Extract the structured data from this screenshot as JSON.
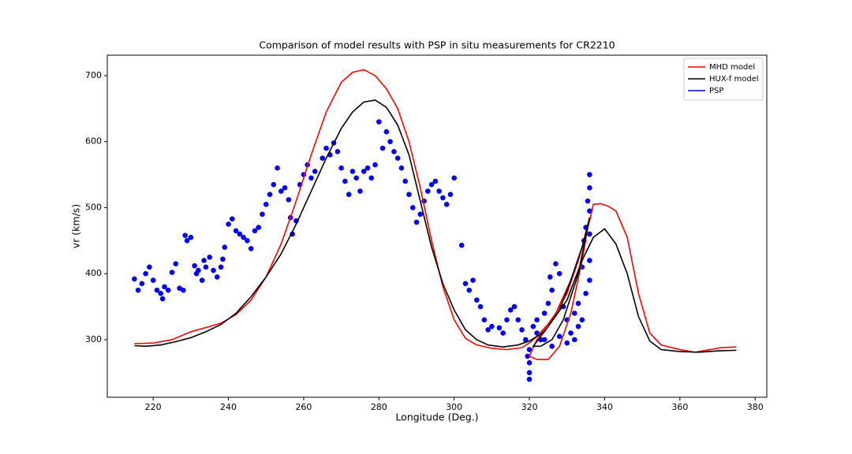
{
  "chart_data": {
    "type": "line",
    "title": "Comparison of model results with PSP in situ measurements for CR2210",
    "x_label": "Longitude (Deg.)",
    "y_label": "vr (km/s)",
    "xlim": [
      207.8,
      383.1
    ],
    "ylim": [
      212.8,
      731
    ],
    "xticks": [
      220,
      240,
      260,
      280,
      300,
      320,
      340,
      360,
      380
    ],
    "yticks": [
      300,
      400,
      500,
      600,
      700
    ],
    "legend": "upper right",
    "series": [
      {
        "name": "MHD model",
        "color": "#ff0000",
        "kind": "line",
        "x": [
          215,
          220,
          225,
          230,
          235,
          238,
          242,
          246,
          250,
          254,
          258,
          262,
          266,
          270,
          273,
          276,
          279,
          282,
          285,
          288,
          291,
          294,
          297,
          300,
          303,
          306,
          310,
          314,
          318,
          320,
          322,
          326,
          330,
          333,
          335,
          336,
          334,
          331,
          328,
          325,
          322,
          320,
          322,
          327,
          331,
          334,
          336,
          337,
          339,
          341,
          343,
          346,
          349,
          352,
          355,
          360,
          364,
          368,
          371,
          375
        ],
        "values": [
          294,
          295,
          300,
          312,
          320,
          325,
          338,
          360,
          395,
          445,
          510,
          580,
          645,
          690,
          705,
          709,
          700,
          680,
          650,
          600,
          530,
          450,
          380,
          330,
          302,
          292,
          287,
          285,
          288,
          295,
          305,
          330,
          370,
          420,
          460,
          485,
          420,
          340,
          290,
          270,
          270,
          275,
          300,
          340,
          390,
          440,
          480,
          505,
          506,
          502,
          495,
          455,
          370,
          310,
          292,
          285,
          281,
          285,
          288,
          289
        ]
      },
      {
        "name": "HUX-f model",
        "color": "#000000",
        "kind": "line",
        "x": [
          215,
          218,
          222,
          226,
          230,
          234,
          238,
          242,
          246,
          250,
          254,
          258,
          262,
          266,
          270,
          273,
          276,
          279,
          282,
          285,
          288,
          291,
          294,
          297,
          300,
          303,
          306,
          309,
          313,
          317,
          320,
          324,
          328,
          331,
          334,
          336,
          333,
          329,
          326,
          323,
          321,
          325,
          330,
          334,
          337,
          340,
          343,
          346,
          349,
          352,
          355,
          360,
          365,
          370,
          375
        ],
        "values": [
          291,
          290,
          292,
          297,
          303,
          312,
          323,
          340,
          365,
          395,
          430,
          475,
          525,
          575,
          620,
          645,
          660,
          663,
          652,
          625,
          580,
          510,
          440,
          385,
          345,
          315,
          300,
          292,
          289,
          292,
          298,
          312,
          345,
          390,
          440,
          485,
          400,
          330,
          300,
          290,
          290,
          320,
          360,
          420,
          455,
          468,
          445,
          400,
          335,
          298,
          285,
          282,
          281,
          283,
          284
        ]
      },
      {
        "name": "PSP",
        "color": "#0000ff",
        "kind": "scatter",
        "x": [
          215,
          216,
          217,
          218,
          219,
          220,
          221,
          222,
          222.5,
          223,
          224,
          225,
          226,
          227,
          228,
          228.5,
          229,
          230,
          231,
          231.5,
          232,
          233,
          233.5,
          234,
          235,
          236,
          237,
          238,
          238.5,
          239,
          240,
          241,
          242,
          243,
          244,
          245,
          246,
          247,
          248,
          249,
          250,
          251,
          252,
          253,
          254,
          255,
          256,
          256.5,
          257,
          258,
          259,
          260,
          261,
          262,
          263,
          265,
          266,
          267,
          268,
          269,
          270,
          271,
          272,
          273,
          274,
          275,
          276,
          277,
          278,
          279,
          280,
          281,
          282,
          283,
          284,
          285,
          286,
          287,
          288,
          289,
          290,
          291,
          292,
          293,
          294,
          295,
          296,
          297,
          298,
          299,
          300,
          302,
          303,
          304,
          305,
          306,
          307,
          308,
          309,
          310,
          312,
          313,
          314,
          315,
          316,
          317,
          318,
          319,
          319.5,
          320,
          320,
          320,
          320,
          321,
          322,
          323,
          324,
          325,
          325.5,
          326,
          327,
          328,
          329,
          330,
          331,
          332,
          333,
          334,
          334.5,
          335,
          335.5,
          336,
          336,
          336,
          336,
          336,
          336,
          335,
          334,
          333,
          332,
          330,
          328,
          326,
          324,
          322
        ],
        "values": [
          392,
          375,
          385,
          400,
          410,
          390,
          375,
          370,
          362,
          380,
          375,
          402,
          415,
          378,
          375,
          458,
          450,
          455,
          412,
          400,
          405,
          390,
          420,
          410,
          425,
          405,
          395,
          410,
          422,
          440,
          475,
          483,
          465,
          460,
          455,
          450,
          438,
          465,
          470,
          490,
          505,
          520,
          535,
          560,
          525,
          530,
          512,
          485,
          460,
          480,
          535,
          550,
          565,
          545,
          555,
          575,
          590,
          580,
          598,
          585,
          560,
          540,
          520,
          555,
          545,
          525,
          555,
          560,
          545,
          565,
          630,
          590,
          615,
          600,
          585,
          575,
          560,
          540,
          520,
          500,
          478,
          490,
          510,
          525,
          535,
          540,
          525,
          515,
          505,
          520,
          545,
          443,
          385,
          375,
          390,
          360,
          350,
          330,
          315,
          320,
          318,
          310,
          330,
          345,
          350,
          330,
          315,
          300,
          275,
          250,
          240,
          265,
          285,
          320,
          330,
          300,
          340,
          355,
          395,
          375,
          415,
          400,
          350,
          330,
          310,
          340,
          355,
          410,
          450,
          470,
          510,
          550,
          530,
          495,
          460,
          420,
          390,
          370,
          330,
          320,
          300,
          295,
          305,
          290,
          300,
          310
        ]
      }
    ]
  }
}
